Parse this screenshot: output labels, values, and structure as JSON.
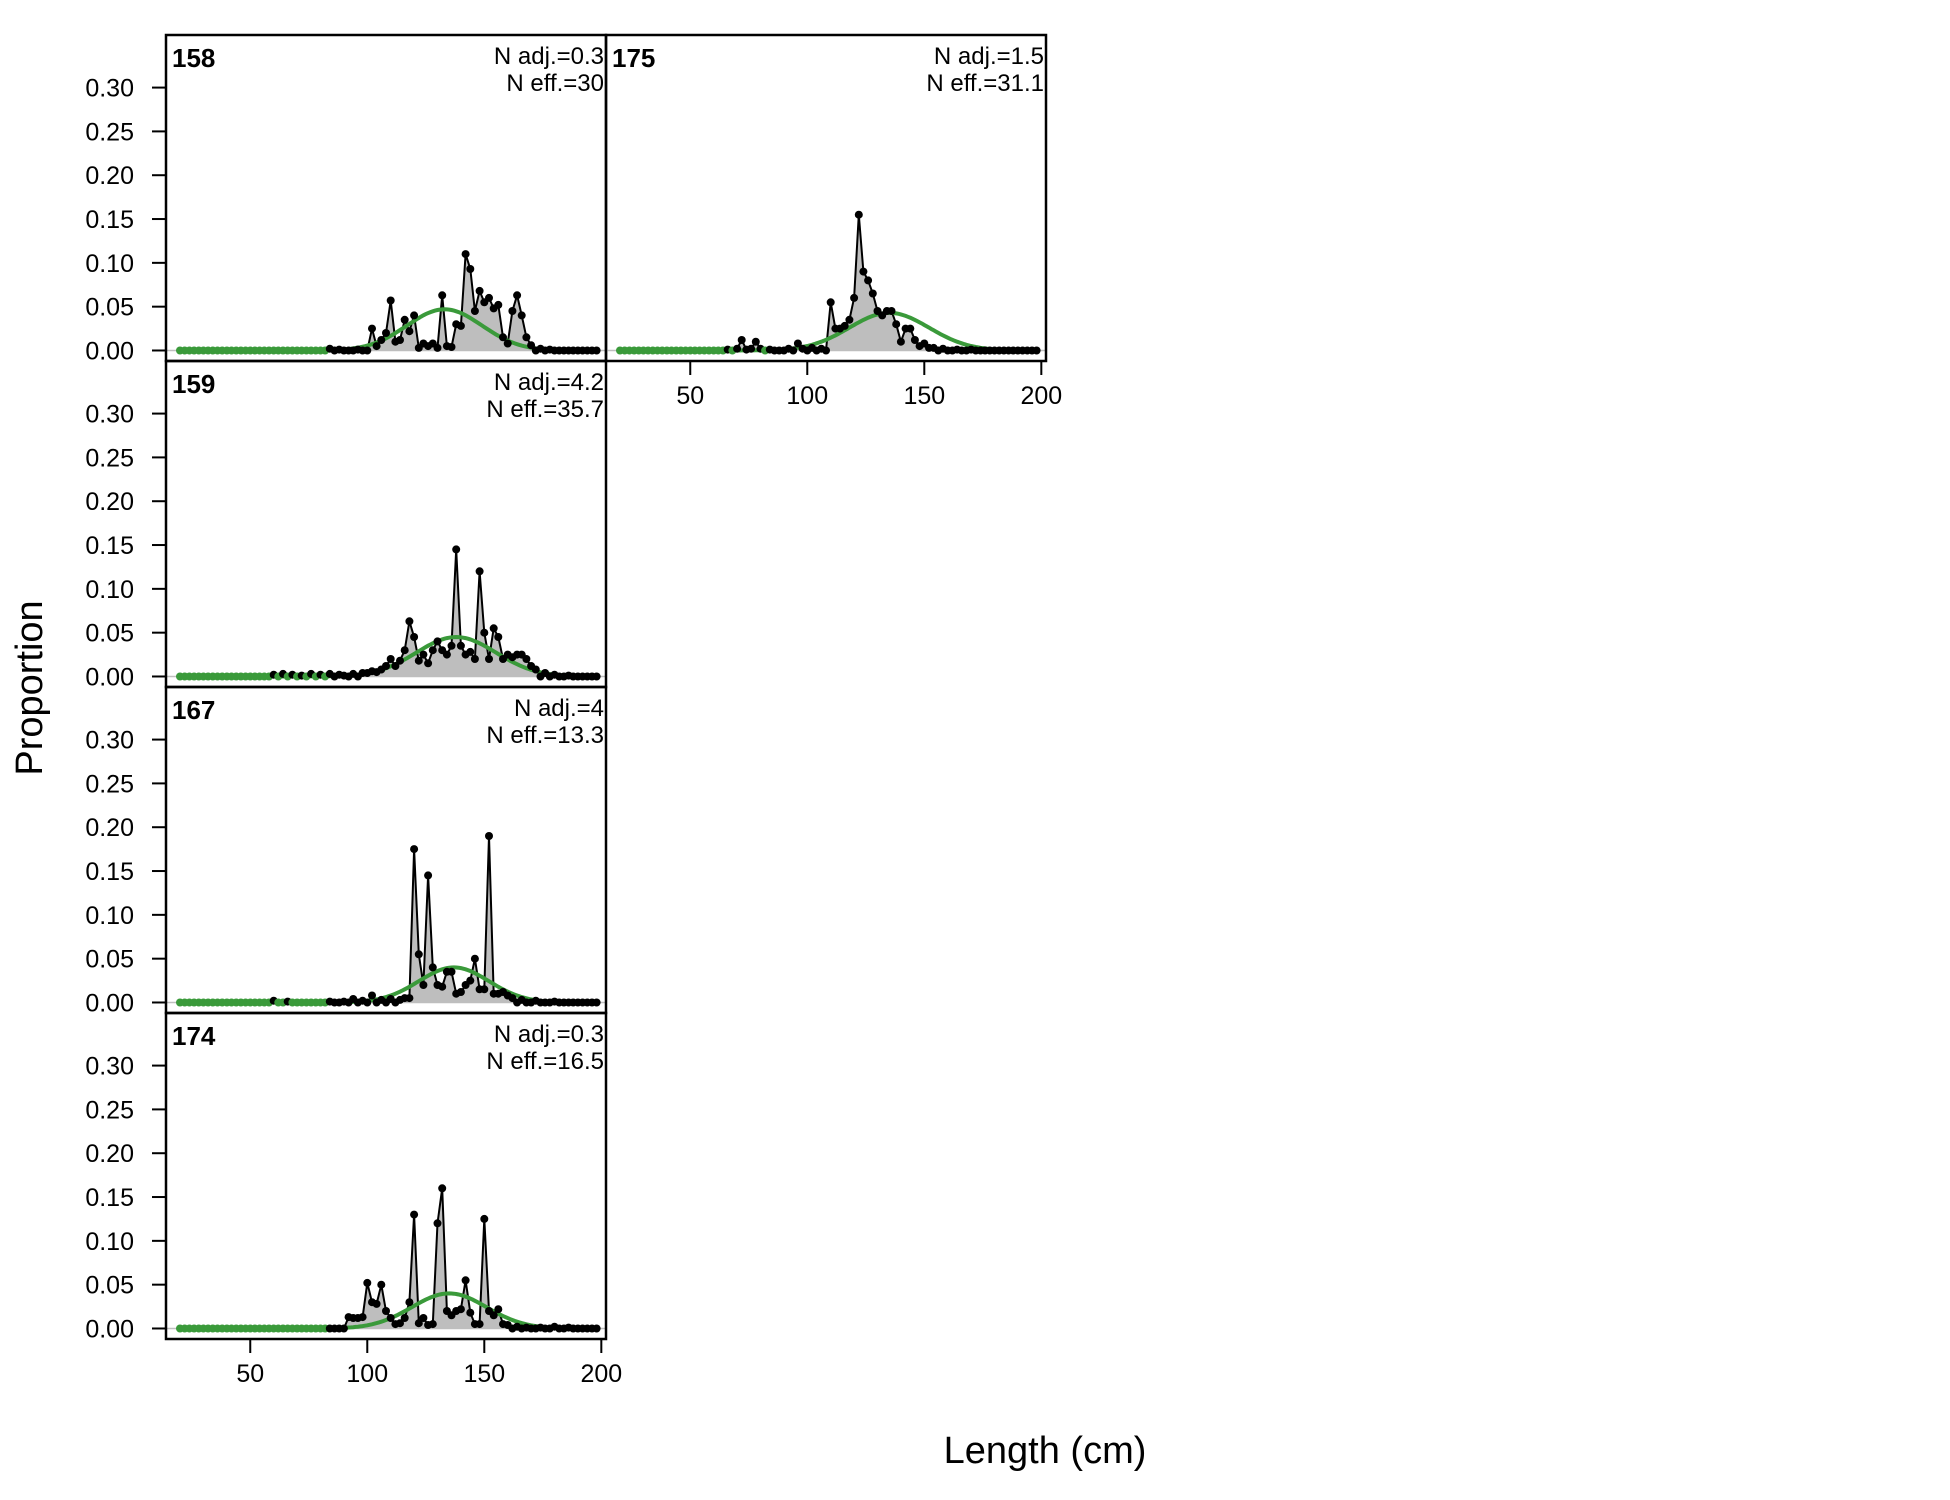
{
  "chart_data": {
    "type": "line",
    "ylabel": "Proportion",
    "xlabel": "Length (cm)",
    "xlim": [
      14,
      202
    ],
    "ylim": [
      -0.012,
      0.36
    ],
    "x_ticks": [
      50,
      100,
      150,
      200
    ],
    "y_ticks": [
      "0.00",
      "0.05",
      "0.10",
      "0.15",
      "0.20",
      "0.25",
      "0.30"
    ],
    "colors": {
      "observed_fill": "#bebebe",
      "observed_line": "#000000",
      "expected_line": "#3a9a3a",
      "zero_line": "#bfbfbf"
    },
    "panels": [
      {
        "id": "158",
        "n_adj": "N adj.=0.3",
        "n_eff": "N eff.=30",
        "expected": {
          "mean": 133,
          "sd": 16,
          "peak": 0.047
        },
        "observed": [
          [
            84,
            0.002
          ],
          [
            88,
            0.001
          ],
          [
            92,
            0.0
          ],
          [
            96,
            0.001
          ],
          [
            99,
            0.002
          ],
          [
            102,
            0.025
          ],
          [
            104,
            0.005
          ],
          [
            106,
            0.012
          ],
          [
            108,
            0.02
          ],
          [
            110,
            0.057
          ],
          [
            112,
            0.01
          ],
          [
            114,
            0.012
          ],
          [
            116,
            0.035
          ],
          [
            118,
            0.022
          ],
          [
            120,
            0.04
          ],
          [
            122,
            0.003
          ],
          [
            124,
            0.008
          ],
          [
            126,
            0.005
          ],
          [
            128,
            0.008
          ],
          [
            130,
            0.003
          ],
          [
            132,
            0.063
          ],
          [
            134,
            0.005
          ],
          [
            136,
            0.004
          ],
          [
            138,
            0.03
          ],
          [
            140,
            0.028
          ],
          [
            142,
            0.11
          ],
          [
            144,
            0.093
          ],
          [
            146,
            0.045
          ],
          [
            148,
            0.068
          ],
          [
            150,
            0.055
          ],
          [
            152,
            0.06
          ],
          [
            154,
            0.048
          ],
          [
            156,
            0.052
          ],
          [
            158,
            0.015
          ],
          [
            160,
            0.008
          ],
          [
            162,
            0.045
          ],
          [
            164,
            0.063
          ],
          [
            166,
            0.04
          ],
          [
            168,
            0.015
          ],
          [
            170,
            0.006
          ],
          [
            174,
            0.002
          ],
          [
            178,
            0.001
          ],
          [
            184,
            0.0
          ],
          [
            190,
            0.0
          ]
        ]
      },
      {
        "id": "159",
        "n_adj": "N adj.=4.2",
        "n_eff": "N eff.=35.7",
        "expected": {
          "mean": 138,
          "sd": 17,
          "peak": 0.045
        },
        "observed": [
          [
            60,
            0.002
          ],
          [
            64,
            0.003
          ],
          [
            68,
            0.002
          ],
          [
            72,
            0.001
          ],
          [
            76,
            0.003
          ],
          [
            80,
            0.002
          ],
          [
            84,
            0.003
          ],
          [
            88,
            0.002
          ],
          [
            90,
            0.001
          ],
          [
            94,
            0.003
          ],
          [
            98,
            0.004
          ],
          [
            100,
            0.004
          ],
          [
            102,
            0.006
          ],
          [
            104,
            0.005
          ],
          [
            106,
            0.008
          ],
          [
            108,
            0.012
          ],
          [
            110,
            0.02
          ],
          [
            112,
            0.012
          ],
          [
            114,
            0.018
          ],
          [
            116,
            0.03
          ],
          [
            118,
            0.063
          ],
          [
            120,
            0.045
          ],
          [
            122,
            0.018
          ],
          [
            124,
            0.025
          ],
          [
            126,
            0.015
          ],
          [
            128,
            0.03
          ],
          [
            130,
            0.04
          ],
          [
            132,
            0.03
          ],
          [
            134,
            0.025
          ],
          [
            136,
            0.035
          ],
          [
            138,
            0.145
          ],
          [
            140,
            0.035
          ],
          [
            142,
            0.025
          ],
          [
            144,
            0.028
          ],
          [
            146,
            0.02
          ],
          [
            148,
            0.12
          ],
          [
            150,
            0.05
          ],
          [
            152,
            0.02
          ],
          [
            154,
            0.055
          ],
          [
            156,
            0.045
          ],
          [
            158,
            0.02
          ],
          [
            160,
            0.025
          ],
          [
            162,
            0.022
          ],
          [
            164,
            0.025
          ],
          [
            166,
            0.025
          ],
          [
            168,
            0.02
          ],
          [
            170,
            0.012
          ],
          [
            172,
            0.008
          ],
          [
            176,
            0.004
          ],
          [
            180,
            0.002
          ],
          [
            186,
            0.001
          ],
          [
            192,
            0.0
          ]
        ]
      },
      {
        "id": "167",
        "n_adj": "N adj.=4",
        "n_eff": "N eff.=13.3",
        "expected": {
          "mean": 137,
          "sd": 15,
          "peak": 0.04
        },
        "observed": [
          [
            60,
            0.002
          ],
          [
            66,
            0.001
          ],
          [
            72,
            0.0
          ],
          [
            78,
            0.0
          ],
          [
            84,
            0.001
          ],
          [
            90,
            0.001
          ],
          [
            94,
            0.004
          ],
          [
            98,
            0.002
          ],
          [
            102,
            0.008
          ],
          [
            106,
            0.003
          ],
          [
            110,
            0.004
          ],
          [
            114,
            0.003
          ],
          [
            116,
            0.005
          ],
          [
            118,
            0.005
          ],
          [
            120,
            0.175
          ],
          [
            122,
            0.055
          ],
          [
            124,
            0.02
          ],
          [
            126,
            0.145
          ],
          [
            128,
            0.04
          ],
          [
            130,
            0.02
          ],
          [
            132,
            0.018
          ],
          [
            134,
            0.035
          ],
          [
            136,
            0.035
          ],
          [
            138,
            0.01
          ],
          [
            140,
            0.012
          ],
          [
            142,
            0.02
          ],
          [
            144,
            0.025
          ],
          [
            146,
            0.05
          ],
          [
            148,
            0.015
          ],
          [
            150,
            0.015
          ],
          [
            152,
            0.19
          ],
          [
            154,
            0.01
          ],
          [
            156,
            0.01
          ],
          [
            158,
            0.012
          ],
          [
            160,
            0.008
          ],
          [
            162,
            0.005
          ],
          [
            166,
            0.003
          ],
          [
            172,
            0.002
          ],
          [
            180,
            0.001
          ],
          [
            190,
            0.0
          ]
        ]
      },
      {
        "id": "174",
        "n_adj": "N adj.=0.3",
        "n_eff": "N eff.=16.5",
        "expected": {
          "mean": 135,
          "sd": 16,
          "peak": 0.04
        },
        "observed": [
          [
            88,
            0.0
          ],
          [
            92,
            0.013
          ],
          [
            94,
            0.012
          ],
          [
            96,
            0.012
          ],
          [
            98,
            0.013
          ],
          [
            100,
            0.052
          ],
          [
            102,
            0.03
          ],
          [
            104,
            0.028
          ],
          [
            106,
            0.05
          ],
          [
            108,
            0.02
          ],
          [
            110,
            0.012
          ],
          [
            112,
            0.005
          ],
          [
            114,
            0.006
          ],
          [
            116,
            0.012
          ],
          [
            118,
            0.03
          ],
          [
            120,
            0.13
          ],
          [
            122,
            0.006
          ],
          [
            124,
            0.012
          ],
          [
            126,
            0.004
          ],
          [
            128,
            0.005
          ],
          [
            130,
            0.12
          ],
          [
            132,
            0.16
          ],
          [
            134,
            0.02
          ],
          [
            136,
            0.015
          ],
          [
            138,
            0.02
          ],
          [
            140,
            0.022
          ],
          [
            142,
            0.055
          ],
          [
            144,
            0.018
          ],
          [
            146,
            0.005
          ],
          [
            148,
            0.005
          ],
          [
            150,
            0.125
          ],
          [
            152,
            0.02
          ],
          [
            154,
            0.015
          ],
          [
            156,
            0.022
          ],
          [
            158,
            0.005
          ],
          [
            160,
            0.004
          ],
          [
            164,
            0.002
          ],
          [
            168,
            0.001
          ],
          [
            174,
            0.001
          ],
          [
            180,
            0.002
          ],
          [
            186,
            0.001
          ],
          [
            192,
            0.0
          ]
        ]
      },
      {
        "id": "175",
        "n_adj": "N adj.=1.5",
        "n_eff": "N eff.=31.1",
        "expected": {
          "mean": 135,
          "sd": 17,
          "peak": 0.043
        },
        "observed": [
          [
            40,
            0.0
          ],
          [
            50,
            0.0
          ],
          [
            60,
            0.0
          ],
          [
            66,
            0.001
          ],
          [
            70,
            0.002
          ],
          [
            72,
            0.012
          ],
          [
            74,
            0.001
          ],
          [
            76,
            0.002
          ],
          [
            78,
            0.01
          ],
          [
            80,
            0.002
          ],
          [
            84,
            0.001
          ],
          [
            88,
            0.0
          ],
          [
            92,
            0.002
          ],
          [
            96,
            0.008
          ],
          [
            98,
            0.002
          ],
          [
            102,
            0.003
          ],
          [
            106,
            0.002
          ],
          [
            110,
            0.055
          ],
          [
            112,
            0.025
          ],
          [
            114,
            0.025
          ],
          [
            116,
            0.028
          ],
          [
            118,
            0.035
          ],
          [
            120,
            0.06
          ],
          [
            122,
            0.155
          ],
          [
            124,
            0.09
          ],
          [
            126,
            0.08
          ],
          [
            128,
            0.065
          ],
          [
            130,
            0.045
          ],
          [
            132,
            0.04
          ],
          [
            134,
            0.045
          ],
          [
            136,
            0.045
          ],
          [
            138,
            0.03
          ],
          [
            140,
            0.01
          ],
          [
            142,
            0.025
          ],
          [
            144,
            0.025
          ],
          [
            146,
            0.012
          ],
          [
            148,
            0.005
          ],
          [
            150,
            0.008
          ],
          [
            152,
            0.003
          ],
          [
            154,
            0.003
          ],
          [
            158,
            0.002
          ],
          [
            164,
            0.001
          ],
          [
            170,
            0.001
          ],
          [
            178,
            0.0
          ],
          [
            186,
            0.0
          ]
        ]
      }
    ]
  }
}
